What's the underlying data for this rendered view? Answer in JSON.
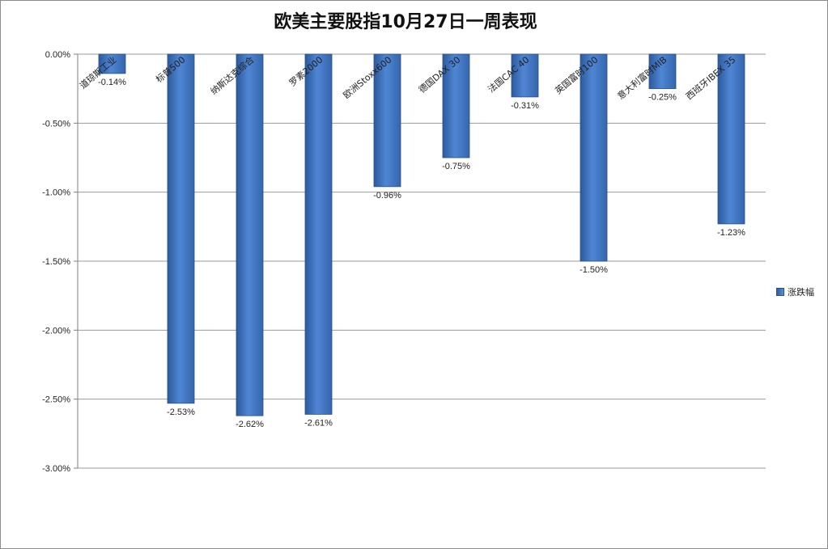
{
  "chart_data": {
    "type": "bar",
    "title": "欧美主要股指10月27日一周表现",
    "categories": [
      "道琼斯工业",
      "标普500",
      "纳斯达克综合",
      "罗素2000",
      "欧洲Stoxx600",
      "德国DAX 30",
      "法国CAC 40",
      "英国富时100",
      "意大利富时MIB",
      "西班牙IBEX 35"
    ],
    "series": [
      {
        "name": "涨跌幅",
        "values": [
          -0.14,
          -2.53,
          -2.62,
          -2.61,
          -0.96,
          -0.75,
          -0.31,
          -1.5,
          -0.25,
          -1.23
        ],
        "data_labels": [
          "-0.14%",
          "-2.53%",
          "-2.62%",
          "-2.61%",
          "-0.96%",
          "-0.75%",
          "-0.31%",
          "-1.50%",
          "-0.25%",
          "-1.23%"
        ]
      }
    ],
    "y_ticks": [
      0,
      -0.5,
      -1.0,
      -1.5,
      -2.0,
      -2.5,
      -3.0
    ],
    "y_tick_labels": [
      "0.00%",
      "-0.50%",
      "-1.00%",
      "-1.50%",
      "-2.00%",
      "-2.50%",
      "-3.00%"
    ],
    "ylim": [
      -3.0,
      0
    ],
    "xlabel": "",
    "ylabel": "",
    "grid": true,
    "legend_position": "right",
    "bar_color": "#3f72bf",
    "bar_edge_color": "#2a4f86"
  }
}
